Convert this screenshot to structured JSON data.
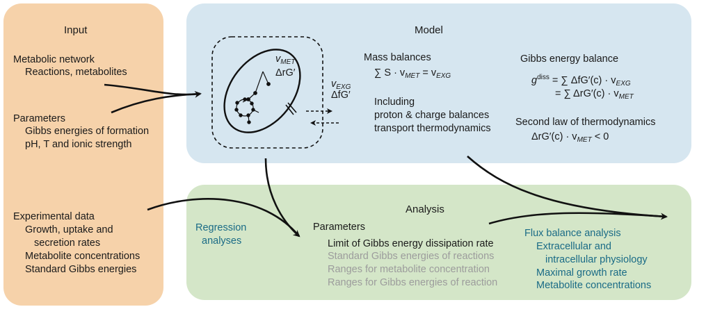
{
  "input": {
    "title": "Input",
    "network_head": "Metabolic network",
    "network_sub": "Reactions, metabolites",
    "params_head": "Parameters",
    "params_1": "Gibbs energies of formation",
    "params_2": "pH, T and ionic strength",
    "exp_head": "Experimental data",
    "exp_1": "Growth, uptake and",
    "exp_2": "secretion rates",
    "exp_3": "Metabolite concentrations",
    "exp_4": "Standard Gibbs energies"
  },
  "model": {
    "title": "Model",
    "cell_label_1": "v",
    "cell_label_1_sub": "MET",
    "cell_label_2": "ΔrG′",
    "exg_label_1": "v",
    "exg_label_1_sub": "EXG",
    "exg_label_2": "ΔfG′",
    "mass_head": "Mass balances",
    "mass_eq": "∑ S · v",
    "mass_eq_sub": "MET",
    "mass_eq_rhs": "= v",
    "mass_eq_rhs_sub": "EXG",
    "including_1": "Including",
    "including_2": "proton & charge balances",
    "including_3": "transport thermodynamics",
    "gibbs_head": "Gibbs energy balance",
    "gibbs_eq1_lhs": "g",
    "gibbs_eq1_lhs_sup": "diss",
    "gibbs_eq1_rhs": "= ∑ ΔfG′(c) · v",
    "gibbs_eq1_rhs_sub": "EXG",
    "gibbs_eq2_rhs": "= ∑ ΔrG′(c) · v",
    "gibbs_eq2_rhs_sub": "MET",
    "second_law_head": "Second law of thermodynamics",
    "second_law_eq": "ΔrG′(c) · v",
    "second_law_eq_sub": "MET",
    "second_law_eq_rhs": "< 0"
  },
  "analysis": {
    "title": "Analysis",
    "regression_1": "Regression",
    "regression_2": "analyses",
    "params_head": "Parameters",
    "param_1": "Limit of Gibbs energy dissipation rate",
    "param_2": "Standard Gibbs energies of reactions",
    "param_3": "Ranges for metabolite concentration",
    "param_4": "Ranges for Gibbs energies of reaction",
    "fba_head": "Flux balance analysis",
    "fba_1": "Extracellular and",
    "fba_2": "intracellular physiology",
    "fba_3": "Maximal growth rate",
    "fba_4": "Metabolite concentrations"
  },
  "colors": {
    "input_bg": "#f6d2aa",
    "model_bg": "#d6e6f0",
    "analysis_bg": "#d4e6c8",
    "teal_text": "#1a6b86",
    "gray_text": "#9c9c9c"
  }
}
